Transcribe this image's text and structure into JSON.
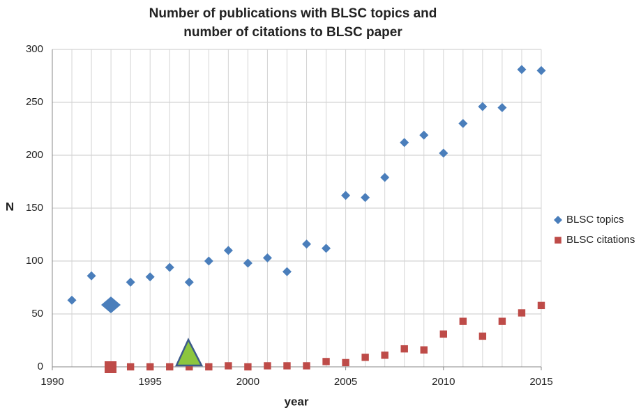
{
  "chart_data": {
    "type": "scatter",
    "title": [
      "Number of publications with BLSC topics and",
      "number of citations to BLSC paper"
    ],
    "x_label": "year",
    "y_label": "N",
    "xlim": [
      1990,
      2015
    ],
    "xticks": [
      1990,
      1995,
      2000,
      2005,
      2010,
      2015
    ],
    "ylim": [
      0,
      300
    ],
    "yticks": [
      0,
      50,
      100,
      150,
      200,
      250,
      300
    ],
    "grid": true,
    "legend": "right",
    "series": [
      {
        "name": "BLSC topics",
        "color": "#4a7ebb",
        "marker": "diamond",
        "x": [
          1991,
          1992,
          1993,
          1994,
          1995,
          1996,
          1997,
          1998,
          1999,
          2000,
          2001,
          2002,
          2003,
          2004,
          2005,
          2006,
          2007,
          2008,
          2009,
          2010,
          2011,
          2012,
          2013,
          2014,
          2015
        ],
        "values": [
          63,
          86,
          57,
          80,
          85,
          94,
          80,
          100,
          110,
          98,
          103,
          90,
          116,
          112,
          162,
          160,
          179,
          212,
          219,
          202,
          230,
          246,
          245,
          281,
          280
        ]
      },
      {
        "name": "BLSC citations",
        "color": "#be4b48",
        "marker": "square",
        "x": [
          1993,
          1994,
          1995,
          1996,
          1997,
          1998,
          1999,
          2000,
          2001,
          2002,
          2003,
          2004,
          2005,
          2006,
          2007,
          2008,
          2009,
          2010,
          2011,
          2012,
          2013,
          2014,
          2015
        ],
        "values": [
          0,
          0,
          0,
          0,
          0,
          0,
          1,
          0,
          1,
          1,
          1,
          5,
          4,
          9,
          11,
          17,
          16,
          31,
          43,
          29,
          43,
          51,
          58
        ]
      }
    ]
  }
}
